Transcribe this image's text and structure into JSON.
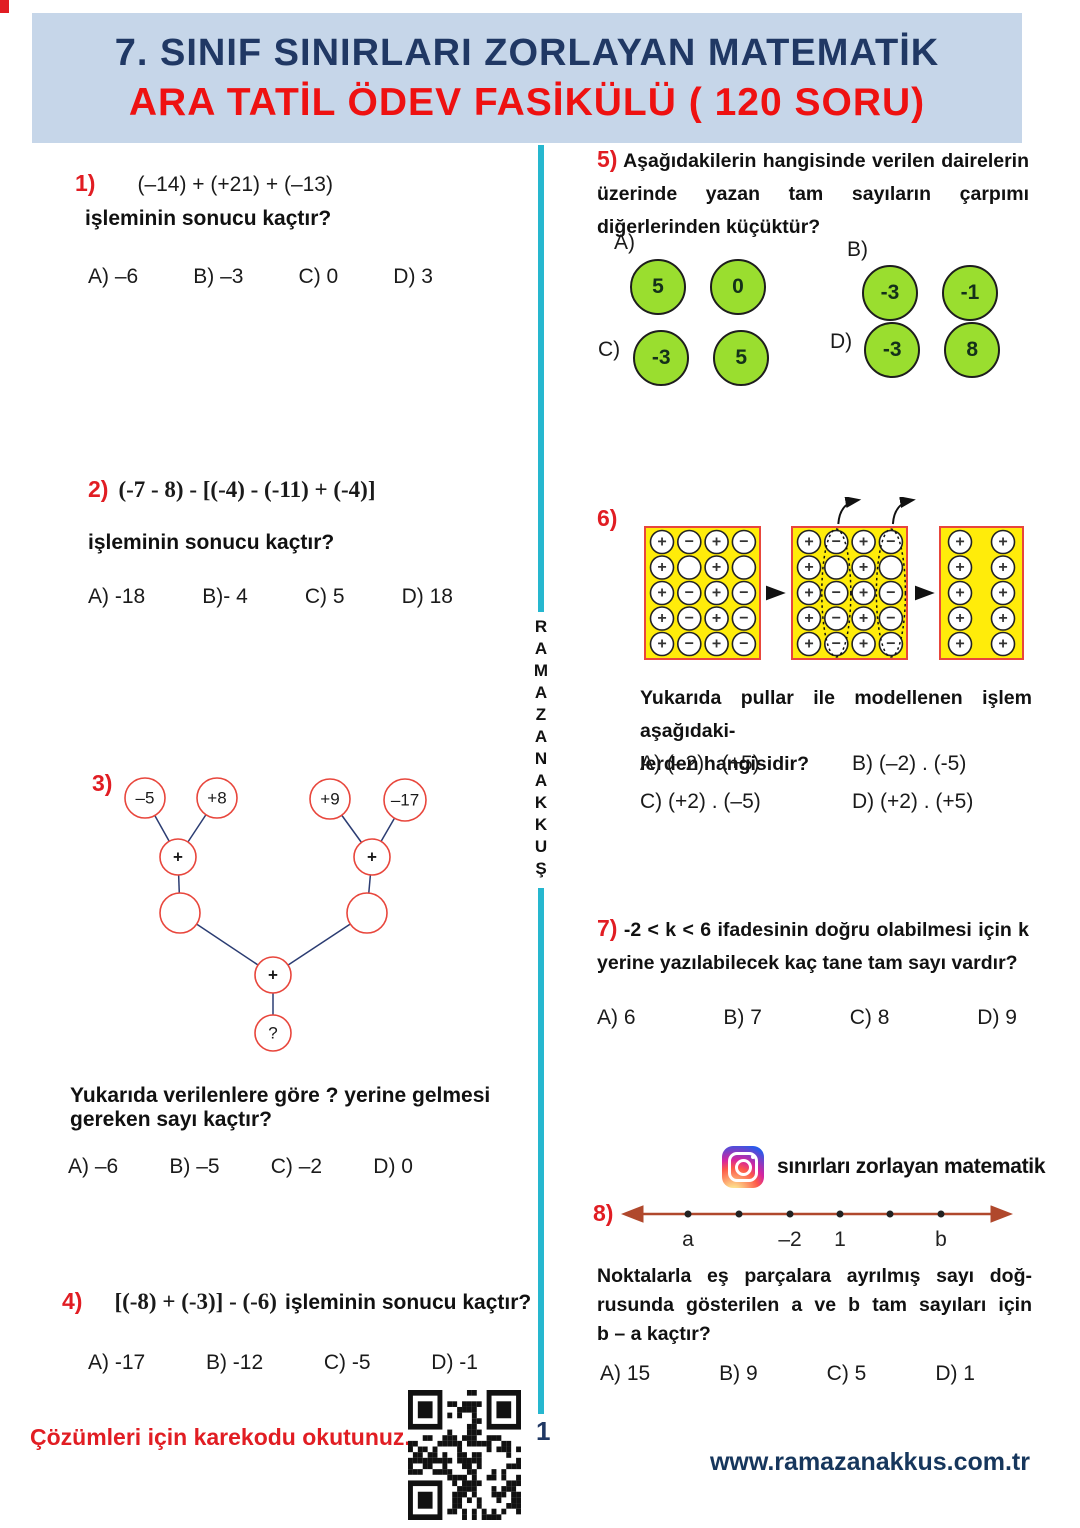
{
  "header": {
    "line1": "7. SINIF SINIRLARI ZORLAYAN MATEMATİK",
    "line2": "ARA TATİL ÖDEV FASİKÜLÜ ( 120 SORU)"
  },
  "divider": {
    "brand_vertical": "RAMAZANAKKUŞ"
  },
  "q1": {
    "no": "1)",
    "expr": "(–14) + (+21) + (–13)",
    "prompt": "işleminin sonucu kaçtır?",
    "options": [
      "A) –6",
      "B) –3",
      "C) 0",
      "D) 3"
    ]
  },
  "q2": {
    "no": "2)",
    "expr": "(-7 - 8) - [(-4) - (-11) + (-4)]",
    "prompt": "işleminin sonucu kaçtır?",
    "options": [
      "A) -18",
      "B)- 4",
      "C) 5",
      "D) 18"
    ]
  },
  "q3": {
    "no": "3)",
    "tree": {
      "top": [
        "–5",
        "+8",
        "+9",
        "–17"
      ],
      "left_op": "+",
      "right_op": "+",
      "bottom_op": "+",
      "result": "?"
    },
    "prompt_line1": "Yukarıda verilenlere göre ? yerine gelmesi",
    "prompt_line2": "gereken sayı kaçtır?",
    "options": [
      "A) –6",
      "B) –5",
      "C) –2",
      "D) 0"
    ]
  },
  "q4": {
    "no": "4)",
    "expr": "[(-8) + (-3)] - (-6)",
    "prompt": "işleminin sonucu kaçtır?",
    "options": [
      "A) -17",
      "B) -12",
      "C) -5",
      "D) -1"
    ]
  },
  "q5": {
    "no": "5)",
    "line1": "Aşağıdakilerin hangisinde verilen dairelerin",
    "line2": "üzerinde yazan tam sayıların çarpımı",
    "line3": "diğerlerinden küçüktür?",
    "options": [
      {
        "label": "A)",
        "values": [
          "5",
          "0"
        ]
      },
      {
        "label": "B)",
        "values": [
          "-3",
          "-1"
        ]
      },
      {
        "label": "C)",
        "values": [
          "-3",
          "5"
        ]
      },
      {
        "label": "D)",
        "values": [
          "-3",
          "8"
        ]
      }
    ]
  },
  "q6": {
    "no": "6)",
    "boxes": [
      {
        "rows": [
          "+-+-",
          "+o+o",
          "+-+-",
          "+-+-",
          "+-+-"
        ],
        "dotted_cols": []
      },
      {
        "rows": [
          "+-+-",
          "+o+o",
          "+-+-",
          "+-+-",
          "+-+-"
        ],
        "dotted_cols": [
          1,
          3
        ]
      },
      {
        "rows": [
          "++",
          "++",
          "++",
          "++",
          "++"
        ],
        "dotted_cols": []
      }
    ],
    "prompt_line1": "Yukarıda pullar ile modellenen işlem aşağıdaki-",
    "prompt_line2": "lerden hangisidir?",
    "options": [
      "A) (–2) . (+5)",
      "B) (–2) . (-5)",
      "C) (+2) . (–5)",
      "D) (+2) . (+5)"
    ]
  },
  "q7": {
    "no": "7)",
    "line1": "-2 < k < 6 ifadesinin doğru olabilmesi için k",
    "line2": "yerine yazılabilecek kaç tane tam sayı vardır?",
    "options": [
      "A) 6",
      "B) 7",
      "C) 8",
      "D) 9"
    ]
  },
  "instagram": {
    "handle": "sınırları zorlayan matematik"
  },
  "q8": {
    "no": "8)",
    "tick_labels": {
      "t1": "a",
      "t3": "–2",
      "t4": "1",
      "t6": "b"
    },
    "line1": "Noktalarla eş parçalara ayrılmış sayı doğ-",
    "line2": "rusunda gösterilen a ve b tam sayıları için",
    "line3": "b – a kaçtır?",
    "options": [
      "A) 15",
      "B) 9",
      "C) 5",
      "D) 1"
    ]
  },
  "footer": {
    "qr_caption": "Çözümleri için karekodu okutunuz.",
    "page_number": "1",
    "url": "www.ramazanakkus.com.tr"
  }
}
